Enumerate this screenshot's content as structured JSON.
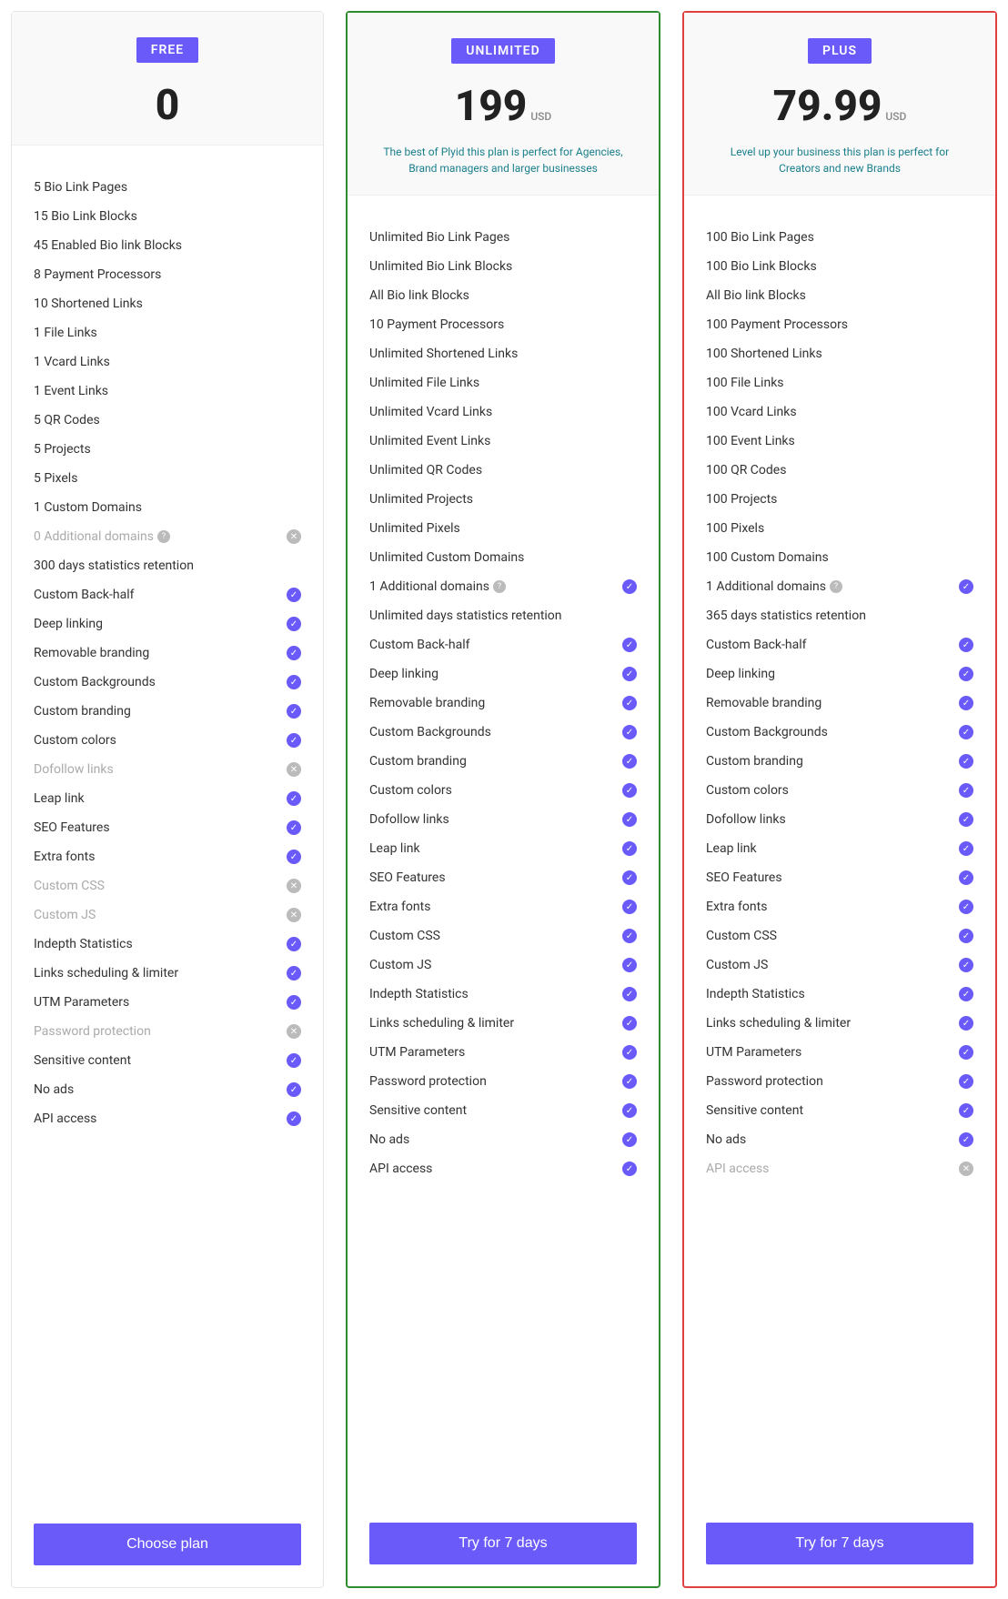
{
  "accent_color": "#6a5af9",
  "teal_color": "#1a7f8c",
  "plans": [
    {
      "key": "free",
      "badge": "FREE",
      "price": "0",
      "currency": "",
      "tagline": "",
      "border": "",
      "button": "Choose plan",
      "features": [
        {
          "label": "5 Bio Link Pages",
          "icon": ""
        },
        {
          "label": "15 Bio Link Blocks",
          "icon": ""
        },
        {
          "label": "45 Enabled Bio link Blocks",
          "icon": ""
        },
        {
          "label": "8 Payment Processors",
          "icon": ""
        },
        {
          "label": "10 Shortened Links",
          "icon": ""
        },
        {
          "label": "1 File Links",
          "icon": ""
        },
        {
          "label": "1 Vcard Links",
          "icon": ""
        },
        {
          "label": "1 Event Links",
          "icon": ""
        },
        {
          "label": "5 QR Codes",
          "icon": ""
        },
        {
          "label": "5 Projects",
          "icon": ""
        },
        {
          "label": "5 Pixels",
          "icon": ""
        },
        {
          "label": "1 Custom Domains",
          "icon": ""
        },
        {
          "label": "0 Additional domains",
          "icon": "x",
          "help": true,
          "disabled": true
        },
        {
          "label": "300 days statistics retention",
          "icon": ""
        },
        {
          "label": "Custom Back-half",
          "icon": "check"
        },
        {
          "label": "Deep linking",
          "icon": "check"
        },
        {
          "label": "Removable branding",
          "icon": "check"
        },
        {
          "label": "Custom Backgrounds",
          "icon": "check"
        },
        {
          "label": "Custom branding",
          "icon": "check"
        },
        {
          "label": "Custom colors",
          "icon": "check"
        },
        {
          "label": "Dofollow links",
          "icon": "x",
          "disabled": true
        },
        {
          "label": "Leap link",
          "icon": "check"
        },
        {
          "label": "SEO Features",
          "icon": "check"
        },
        {
          "label": "Extra fonts",
          "icon": "check"
        },
        {
          "label": "Custom CSS",
          "icon": "x",
          "disabled": true
        },
        {
          "label": "Custom JS",
          "icon": "x",
          "disabled": true
        },
        {
          "label": "Indepth Statistics",
          "icon": "check"
        },
        {
          "label": "Links scheduling & limiter",
          "icon": "check"
        },
        {
          "label": "UTM Parameters",
          "icon": "check"
        },
        {
          "label": "Password protection",
          "icon": "x",
          "disabled": true
        },
        {
          "label": "Sensitive content",
          "icon": "check"
        },
        {
          "label": "No ads",
          "icon": "check"
        },
        {
          "label": "API access",
          "icon": "check"
        }
      ]
    },
    {
      "key": "unlimited",
      "badge": "UNLIMITED",
      "price": "199",
      "currency": "USD",
      "tagline": "The best of Plyid this plan is perfect for Agencies, Brand managers and larger businesses",
      "border": "green",
      "button": "Try for 7 days",
      "features": [
        {
          "label": "Unlimited Bio Link Pages",
          "icon": ""
        },
        {
          "label": "Unlimited Bio Link Blocks",
          "icon": ""
        },
        {
          "label": "All Bio link Blocks",
          "icon": ""
        },
        {
          "label": "10 Payment Processors",
          "icon": ""
        },
        {
          "label": "Unlimited Shortened Links",
          "icon": ""
        },
        {
          "label": "Unlimited File Links",
          "icon": ""
        },
        {
          "label": "Unlimited Vcard Links",
          "icon": ""
        },
        {
          "label": "Unlimited Event Links",
          "icon": ""
        },
        {
          "label": "Unlimited QR Codes",
          "icon": ""
        },
        {
          "label": "Unlimited Projects",
          "icon": ""
        },
        {
          "label": "Unlimited Pixels",
          "icon": ""
        },
        {
          "label": "Unlimited Custom Domains",
          "icon": ""
        },
        {
          "label": "1 Additional domains",
          "icon": "check",
          "help": true
        },
        {
          "label": "Unlimited days statistics retention",
          "icon": ""
        },
        {
          "label": "Custom Back-half",
          "icon": "check"
        },
        {
          "label": "Deep linking",
          "icon": "check"
        },
        {
          "label": "Removable branding",
          "icon": "check"
        },
        {
          "label": "Custom Backgrounds",
          "icon": "check"
        },
        {
          "label": "Custom branding",
          "icon": "check"
        },
        {
          "label": "Custom colors",
          "icon": "check"
        },
        {
          "label": "Dofollow links",
          "icon": "check"
        },
        {
          "label": "Leap link",
          "icon": "check"
        },
        {
          "label": "SEO Features",
          "icon": "check"
        },
        {
          "label": "Extra fonts",
          "icon": "check"
        },
        {
          "label": "Custom CSS",
          "icon": "check"
        },
        {
          "label": "Custom JS",
          "icon": "check"
        },
        {
          "label": "Indepth Statistics",
          "icon": "check"
        },
        {
          "label": "Links scheduling & limiter",
          "icon": "check"
        },
        {
          "label": "UTM Parameters",
          "icon": "check"
        },
        {
          "label": "Password protection",
          "icon": "check"
        },
        {
          "label": "Sensitive content",
          "icon": "check"
        },
        {
          "label": "No ads",
          "icon": "check"
        },
        {
          "label": "API access",
          "icon": "check"
        }
      ]
    },
    {
      "key": "plus",
      "badge": "PLUS",
      "price": "79.99",
      "currency": "USD",
      "tagline": "Level up your business this plan is perfect for Creators and new Brands",
      "border": "red",
      "button": "Try for 7 days",
      "features": [
        {
          "label": "100 Bio Link Pages",
          "icon": ""
        },
        {
          "label": "100 Bio Link Blocks",
          "icon": ""
        },
        {
          "label": "All Bio link Blocks",
          "icon": ""
        },
        {
          "label": "100 Payment Processors",
          "icon": ""
        },
        {
          "label": "100 Shortened Links",
          "icon": ""
        },
        {
          "label": "100 File Links",
          "icon": ""
        },
        {
          "label": "100 Vcard Links",
          "icon": ""
        },
        {
          "label": "100 Event Links",
          "icon": ""
        },
        {
          "label": "100 QR Codes",
          "icon": ""
        },
        {
          "label": "100 Projects",
          "icon": ""
        },
        {
          "label": "100 Pixels",
          "icon": ""
        },
        {
          "label": "100 Custom Domains",
          "icon": ""
        },
        {
          "label": "1 Additional domains",
          "icon": "check",
          "help": true
        },
        {
          "label": "365 days statistics retention",
          "icon": ""
        },
        {
          "label": "Custom Back-half",
          "icon": "check"
        },
        {
          "label": "Deep linking",
          "icon": "check"
        },
        {
          "label": "Removable branding",
          "icon": "check"
        },
        {
          "label": "Custom Backgrounds",
          "icon": "check"
        },
        {
          "label": "Custom branding",
          "icon": "check"
        },
        {
          "label": "Custom colors",
          "icon": "check"
        },
        {
          "label": "Dofollow links",
          "icon": "check"
        },
        {
          "label": "Leap link",
          "icon": "check"
        },
        {
          "label": "SEO Features",
          "icon": "check"
        },
        {
          "label": "Extra fonts",
          "icon": "check"
        },
        {
          "label": "Custom CSS",
          "icon": "check"
        },
        {
          "label": "Custom JS",
          "icon": "check"
        },
        {
          "label": "Indepth Statistics",
          "icon": "check"
        },
        {
          "label": "Links scheduling & limiter",
          "icon": "check"
        },
        {
          "label": "UTM Parameters",
          "icon": "check"
        },
        {
          "label": "Password protection",
          "icon": "check"
        },
        {
          "label": "Sensitive content",
          "icon": "check"
        },
        {
          "label": "No ads",
          "icon": "check"
        },
        {
          "label": "API access",
          "icon": "x",
          "disabled": true
        }
      ]
    }
  ]
}
